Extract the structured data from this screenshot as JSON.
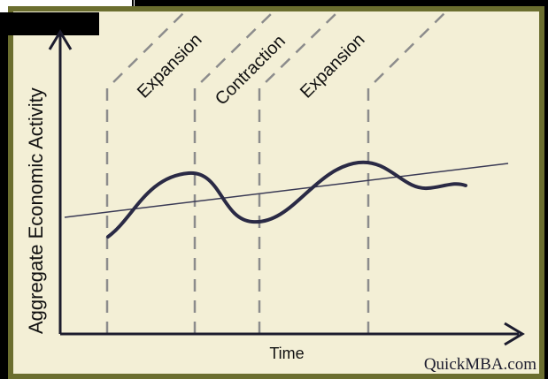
{
  "diagram": {
    "y_axis_label": "Aggregate Economic Activity",
    "x_axis_label": "Time",
    "watermark": "QuickMBA.com",
    "phases": [
      {
        "label": "Expansion"
      },
      {
        "label": "Contraction"
      },
      {
        "label": "Expansion"
      }
    ],
    "colors": {
      "background": "#f3efd6",
      "frame": "#6b6e2f",
      "axis": "#1c1c2e",
      "curve": "#2a2a45",
      "trend": "#3a3a55",
      "dashed": "#8c8c8c",
      "outer": "#000000"
    }
  }
}
